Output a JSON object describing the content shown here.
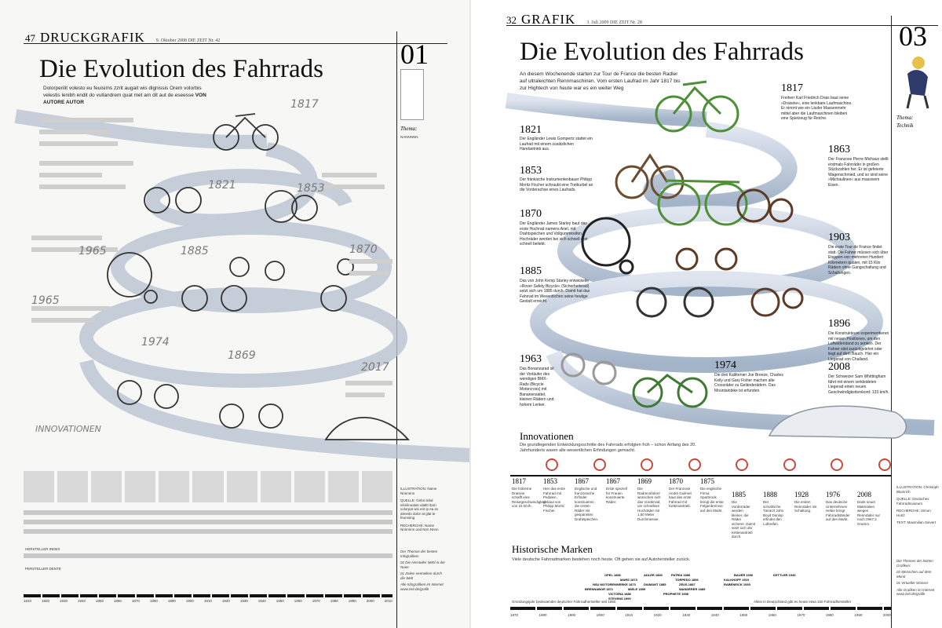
{
  "left": {
    "page_number": "47",
    "section": "DRUCKGRAFIK",
    "meta": "9. Oktober 2008          DIE ZEIT  Nr. 42",
    "big_number": "01",
    "title": "Die Evolution des Fahrrads",
    "lead": "Dolorperilit volesto eu feuisims zzrit augait wis dignissis Orem volorbis velestis lenibh endit do vullandrem quat met am dit aut de eseesse",
    "lead_author": "VON AUTORE AUTOR",
    "thema_label": "Thema:",
    "thema_value": "NANNNNN",
    "years": [
      "1817",
      "1821",
      "1853",
      "1965",
      "1885",
      "1870",
      "1965",
      "1974",
      "1869",
      "2017"
    ],
    "innovationen": "INNOVATIONEN",
    "hersteller_label": "HERSTELLER INDEX",
    "persteller": "PERSTELLER DENTE",
    "timeline": [
      "1810",
      "1820",
      "1830",
      "1840",
      "1850",
      "1860",
      "1870",
      "1880",
      "1890",
      "1900",
      "1910",
      "1920",
      "1930",
      "1940",
      "1950",
      "1960",
      "1970",
      "1980",
      "1990",
      "2000",
      "2010"
    ],
    "credits": [
      "ILLUSTRATION: Name Nnnnnnn",
      "QUELLE: Gebir leilal elimilnuatas ulatitt itarri volorpat wis erit ip ea ex atmeito dolor at glat te feumsing",
      "RECHERCHE: Name Nnnnnnn und Nnn Nnnn"
    ],
    "side_notes": [
      "Der Thomas der besten Infografiken",
      "02 Die Hersteller Mehl in der Nuee",
      "01 Zeilen nennellem durch die Welt",
      "Alle Infografiken im Internet www.zeit.de/grafik"
    ]
  },
  "right": {
    "page_number": "32",
    "section": "GRAFIK",
    "meta": "3. Juli 2009          DIE ZEIT  Nr. 28",
    "big_number": "03",
    "title": "Die Evolution des Fahrrads",
    "lead": "An diesem Wochenende starten zur Tour de France die besten Radler auf ultraleichten Rennmaschinen. Vom ersten Laufrad im Jahr 1817 bis zur Hightech von heute war es ein weiter Weg",
    "thema_label": "Thema:",
    "thema_value": "Technik",
    "milestones": [
      {
        "year": "1817",
        "text": "Freiherr Karl Friedrich Drais baut seine »Draisine«, eine lenkbare Laufmaschine. Er nimmt wie ein Läufer Massenmehr mittel aber die Laufmaschinen bleiben eine Spielzeug für Reiche."
      },
      {
        "year": "1821",
        "text": "Der Engländer Lewis Gompertz stattet ein Laufrad mit einem zusätzlichen Handantrieb aus."
      },
      {
        "year": "1853",
        "text": "Der fränkische Instrumentenbauer Philipp Moritz Fischer schraubt eine Tretkurbel an die Vorderachse eines Laufrads."
      },
      {
        "year": "1863",
        "text": "Der Franzose Pierre Michaux stellt erstmals Fahrräder in großen Stückzahlen her. Er ist gefeierte Wagenschmied, und so sind seine »Michaulines« aus massivem Eisen."
      },
      {
        "year": "1870",
        "text": "Der Engländer James Starley baut das erste Hochrad namens Ariel, mit Drahtspeichen und Vollgummireifen. Hochräder werden bei sich schnell erst schnell beliebt."
      },
      {
        "year": "1903",
        "text": "Die erste Tour de France findet statt. Die Fahrer müssen sich über Etappen von mehreren Hundert Kilometern quälen, mit 15 Kilo Rädern ohne Gangschaltung und Schaltungen."
      },
      {
        "year": "1885",
        "text": "Das von John Kemp Starley entwickelte »Rover Safety Bicycle« (Sicherheitsrad) setzt sich um 1885 durch. Damit hat das Fahrrad im Wesentlichen seine heutige Gestalt erreicht."
      },
      {
        "year": "1896",
        "text": "Die Konstrukteure experimentieren mit neuen Positionen, um den Luftwiderstand zu senken. Der Fahrer sitzt zurückgelehnt oder liegt auf dem Bauch. Hier ein Liegerad von Challand."
      },
      {
        "year": "1963",
        "text": "Das Bonanzarad ist der Vorläufer des wendigen BMX-Rads (Bicycle Motorcross) mit Bananensattel, kleinen Rädern und hohem Lenker."
      },
      {
        "year": "1974",
        "text": "Die drei Kalifornier Joe Breeze, Charles Kelly und Gary Fisher machen alte Crossräder zu Geländerädern. Das Mountainbike ist erfunden."
      },
      {
        "year": "2008",
        "text": "Der Schweizer Sam Whittingham fährt mit einem verkleideten Liegerad einen neuen Geschwindigkeitsrekord: 133 km/h."
      }
    ],
    "innovationen_title": "Innovationen",
    "innovationen_lead": "Die grundlegenden Entwicklungsschritte des Fahrrads erfolgten früh – schon Anfang des 20. Jahrhunderts waren alle wesentlichen Erfindungen gemacht.",
    "innovations": [
      {
        "year": "1817",
        "text": "Die hölzerne Draisine schafft eine Reisegeschwindigkeit von 15 km/h."
      },
      {
        "year": "1853",
        "text": "Hier das erste Fahrrad mit Pedalen, gebaut von Philipp Moritz Fischer."
      },
      {
        "year": "1867",
        "text": "Englische und französische Erfinder konstruieren die ersten Räder mit gespannten Drahtspeichen."
      },
      {
        "year": "1867",
        "text": "Erste speziell für Frauen konstruierte Räder."
      },
      {
        "year": "1869",
        "text": "Die Radrennfahrer wünschen sich das Vorderrad, um schnellere Hochräder mit 1,50 Meter Durchmesser."
      },
      {
        "year": "1870",
        "text": "Der Franzose André Guilmet baut das erste Fahrrad mit Kettenantrieb."
      },
      {
        "year": "1875",
        "text": "Die englische Firma Sparbrook bringt die erste Felgenbremse auf den Markt."
      },
      {
        "year": "1885",
        "text": "Die Vorderräder werden kleiner, die Räder sicherer. Damit setzt sich der Kettenantrieb durch."
      },
      {
        "year": "1888",
        "text": "Der schottische Tierarzt John Boyd Dunlop erfindet den Luftreifen."
      },
      {
        "year": "1928",
        "text": "Die ersten Rennräder mit Schaltung."
      },
      {
        "year": "1976",
        "text": "Das deutsche Unternehmen Hebie bringt Fahrradständer auf den Markt."
      },
      {
        "year": "2008",
        "text": "Dank neuer Materialien wiegen Rennräder nur noch 2967,2 Gramm."
      }
    ],
    "marken_title": "Historische Marken",
    "marken_lead": "Viele deutsche Fahrradmarken bestehen noch heute. Oft gehen sie auf Autohersteller zurück.",
    "brands": [
      "OPEL 1886",
      "ADLER 1880",
      "PATRIA 1889",
      "BAUER 1936",
      "KETTLER 1949",
      "MARS 1873",
      "TORPEDO 1896",
      "KALKHOFF 1919",
      "NSU MOTORENWERKE 1873",
      "DIAMANT 1885",
      "ZEUS 1887",
      "RABENEICK 1930",
      "BRENNABOR 1871",
      "MIELE 1899",
      "WANDERER 1885",
      "VICTORIA 1886",
      "PROPHETE 1908",
      "STEVENS 1990"
    ],
    "timeline": [
      "1870",
      "1880",
      "1890",
      "1900",
      "1910",
      "1920",
      "1930",
      "1940",
      "1950",
      "1960",
      "1970",
      "1980",
      "1990",
      "2000"
    ],
    "footnote_left": "Gründungsjahr bedeutender deutscher Fahrradhersteller seit 1850",
    "footnote_right": "Allein in Deutschland gibt es heute etwa 150 Fahrradhersteller",
    "credits": [
      "ILLUSTRATION: Christoph Blumrich",
      "QUELLE: Deutsches Fahrradmuseum",
      "RECHERCHE: Simon Hurtz",
      "TEXT: Maximilian Sievert"
    ],
    "side_notes": [
      "Die Themen der letzten Grafiken:",
      "02 Menschen auf dem Mond",
      "01 Virtueller Wasser",
      "Alle Grafiken im Internet www.zeit.de/grafik"
    ]
  },
  "colors": {
    "spiral": "#b7c3d3",
    "bike_green": "#4f8f38",
    "ink": "#111111"
  }
}
